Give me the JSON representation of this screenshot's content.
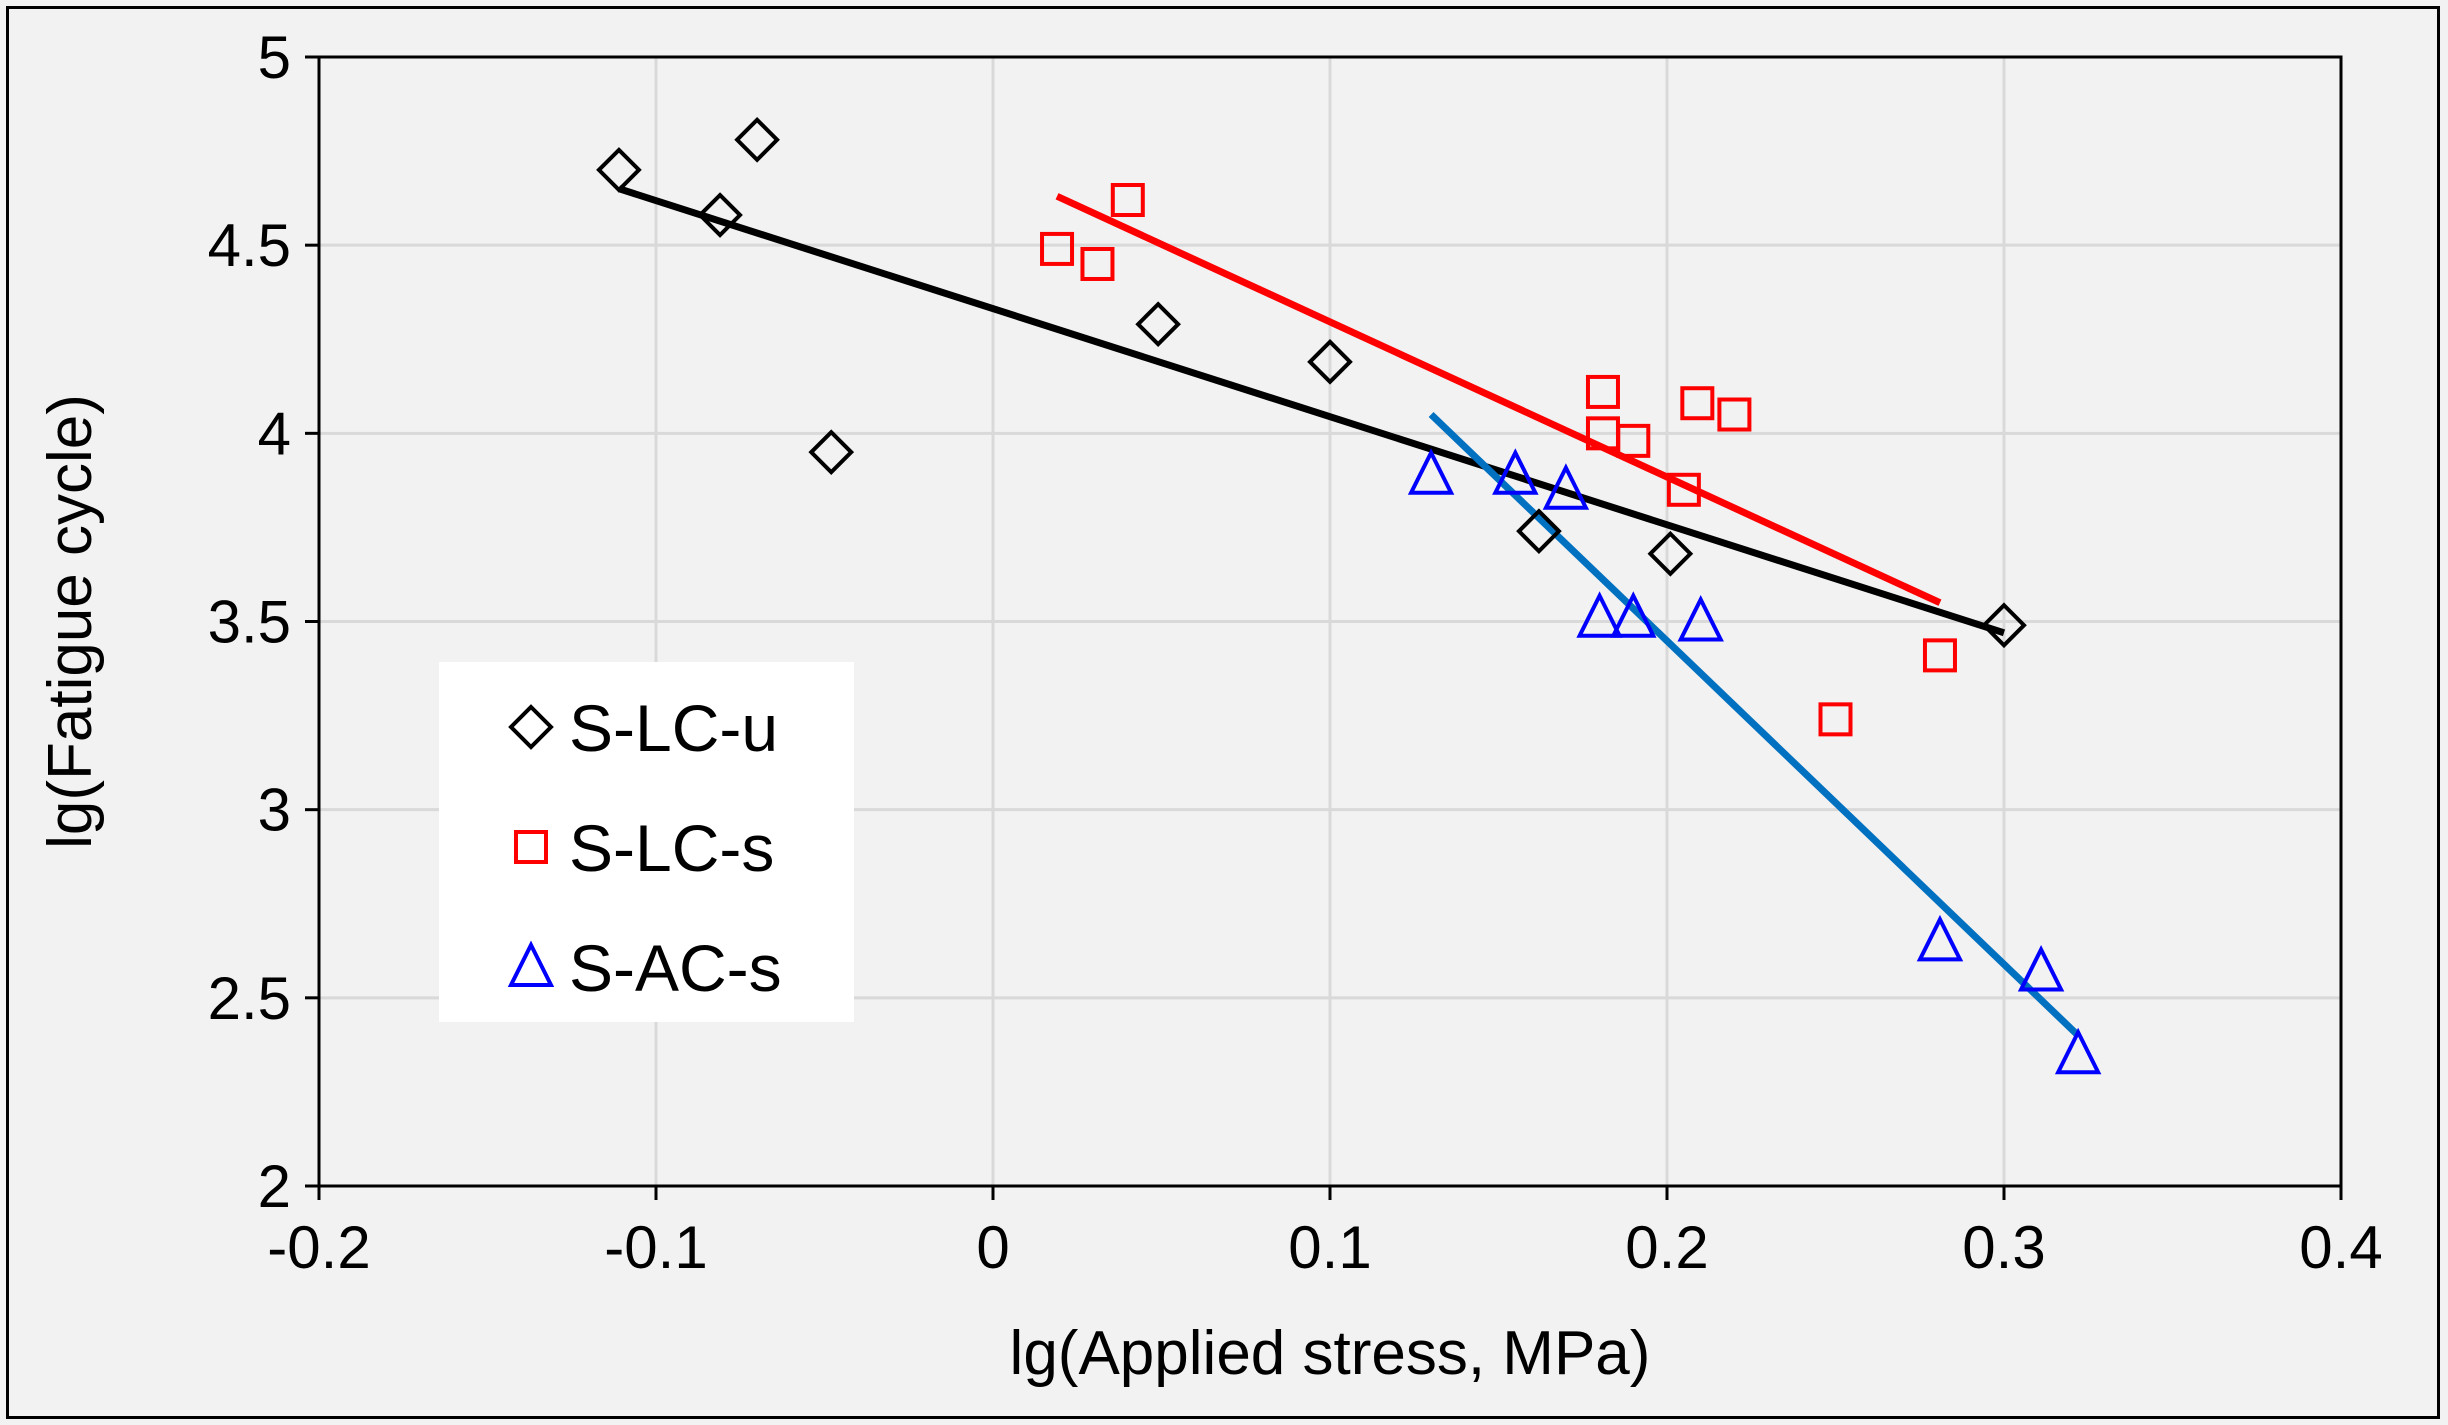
{
  "chart_data": {
    "type": "scatter",
    "title": "",
    "xlabel": "lg(Applied stress, MPa)",
    "ylabel": "lg(Fatigue cycle)",
    "xlim": [
      -0.2,
      0.4
    ],
    "ylim": [
      2,
      5
    ],
    "xticks": [
      -0.2,
      -0.1,
      0,
      0.1,
      0.2,
      0.3,
      0.4
    ],
    "yticks": [
      2,
      2.5,
      3,
      3.5,
      4,
      4.5,
      5
    ],
    "xtick_labels": [
      "-0.2",
      "-0.1",
      "0",
      "0.1",
      "0.2",
      "0.3",
      "0.4"
    ],
    "ytick_labels": [
      "2",
      "2.5",
      "3",
      "3.5",
      "4",
      "4.5",
      "5"
    ],
    "grid": true,
    "legend_position": "middle-left",
    "series": [
      {
        "name": "S-LC-u",
        "marker": "diamond",
        "color": "#000000",
        "trend_color": "#000000",
        "points": [
          [
            -0.111,
            4.7
          ],
          [
            -0.081,
            4.58
          ],
          [
            -0.07,
            4.78
          ],
          [
            -0.048,
            3.95
          ],
          [
            0.049,
            4.29
          ],
          [
            0.1,
            4.19
          ],
          [
            0.162,
            3.74
          ],
          [
            0.201,
            3.68
          ],
          [
            0.3,
            3.49
          ]
        ],
        "trendline": [
          [
            -0.111,
            4.65
          ],
          [
            0.3,
            3.47
          ]
        ]
      },
      {
        "name": "S-LC-s",
        "marker": "square",
        "color": "#ff0000",
        "trend_color": "#ff0000",
        "points": [
          [
            0.019,
            4.49
          ],
          [
            0.031,
            4.45
          ],
          [
            0.04,
            4.62
          ],
          [
            0.181,
            4.11
          ],
          [
            0.181,
            4.0
          ],
          [
            0.19,
            3.98
          ],
          [
            0.209,
            4.08
          ],
          [
            0.22,
            4.05
          ],
          [
            0.205,
            3.85
          ],
          [
            0.25,
            3.24
          ],
          [
            0.281,
            3.41
          ]
        ],
        "trendline": [
          [
            0.019,
            4.63
          ],
          [
            0.281,
            3.55
          ]
        ]
      },
      {
        "name": "S-AC-s",
        "marker": "triangle",
        "color": "#0000ff",
        "trend_color": "#0070c0",
        "points": [
          [
            0.13,
            3.89
          ],
          [
            0.155,
            3.89
          ],
          [
            0.17,
            3.85
          ],
          [
            0.18,
            3.51
          ],
          [
            0.19,
            3.51
          ],
          [
            0.21,
            3.5
          ],
          [
            0.281,
            2.65
          ],
          [
            0.311,
            2.57
          ],
          [
            0.322,
            2.35
          ]
        ],
        "trendline": [
          [
            0.13,
            4.05
          ],
          [
            0.322,
            2.4
          ]
        ]
      }
    ]
  }
}
